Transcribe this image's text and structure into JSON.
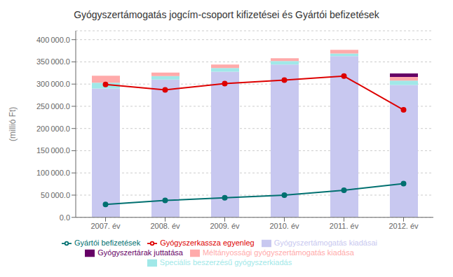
{
  "chart_data": {
    "type": "bar",
    "title": "Gyógyszertámogatás jogcím-csoport kifizetései és Gyártói befizetések",
    "ylabel": "(millió Ft)",
    "categories": [
      "2007. év",
      "2008. év",
      "2009. év",
      "2010. év",
      "2011. év",
      "2012. év"
    ],
    "series": [
      {
        "name": "Gyógyszertámogatás kiadásai",
        "type": "bar",
        "color": "#c8c8f0",
        "values": [
          290000,
          310000,
          328000,
          344000,
          363000,
          298000
        ]
      },
      {
        "name": "Speciális beszerzésű gyógyszerkiadás",
        "type": "bar",
        "color": "#a0e8e8",
        "values": [
          13000,
          8000,
          8000,
          8000,
          6000,
          10000
        ]
      },
      {
        "name": "Méltányossági gyógyszertámogatás kiadása",
        "type": "bar",
        "color": "#ffaaaa",
        "values": [
          16000,
          8000,
          8000,
          6000,
          8000,
          8000
        ]
      },
      {
        "name": "Gyógyszertárak juttatása",
        "type": "bar",
        "color": "#660066",
        "values": [
          0,
          0,
          0,
          0,
          0,
          8000
        ]
      },
      {
        "name": "Gyártói befizetések",
        "type": "line",
        "marker": "circle",
        "color": "#007070",
        "values": [
          29000,
          38000,
          44000,
          50000,
          61000,
          76000
        ]
      },
      {
        "name": "Gyógyszerkassza egyenleg",
        "type": "line",
        "marker": "circle",
        "color": "#dd0000",
        "values": [
          299000,
          287000,
          301000,
          309000,
          318000,
          242000
        ]
      }
    ],
    "stacked": true,
    "ylim": [
      0,
      420000
    ],
    "yticks": [
      {
        "value": 0,
        "label": "0.0"
      },
      {
        "value": 50000,
        "label": "50 000.0"
      },
      {
        "value": 100000,
        "label": "100 000.0"
      },
      {
        "value": 150000,
        "label": "150 000.0"
      },
      {
        "value": 200000,
        "label": "200 000.0"
      },
      {
        "value": 250000,
        "label": "250 000.0"
      },
      {
        "value": 300000,
        "label": "300 000.0"
      },
      {
        "value": 350000,
        "label": "350 000.0"
      },
      {
        "value": 400000,
        "label": "400 000.0"
      }
    ],
    "grid": true,
    "legend": "bottom"
  }
}
